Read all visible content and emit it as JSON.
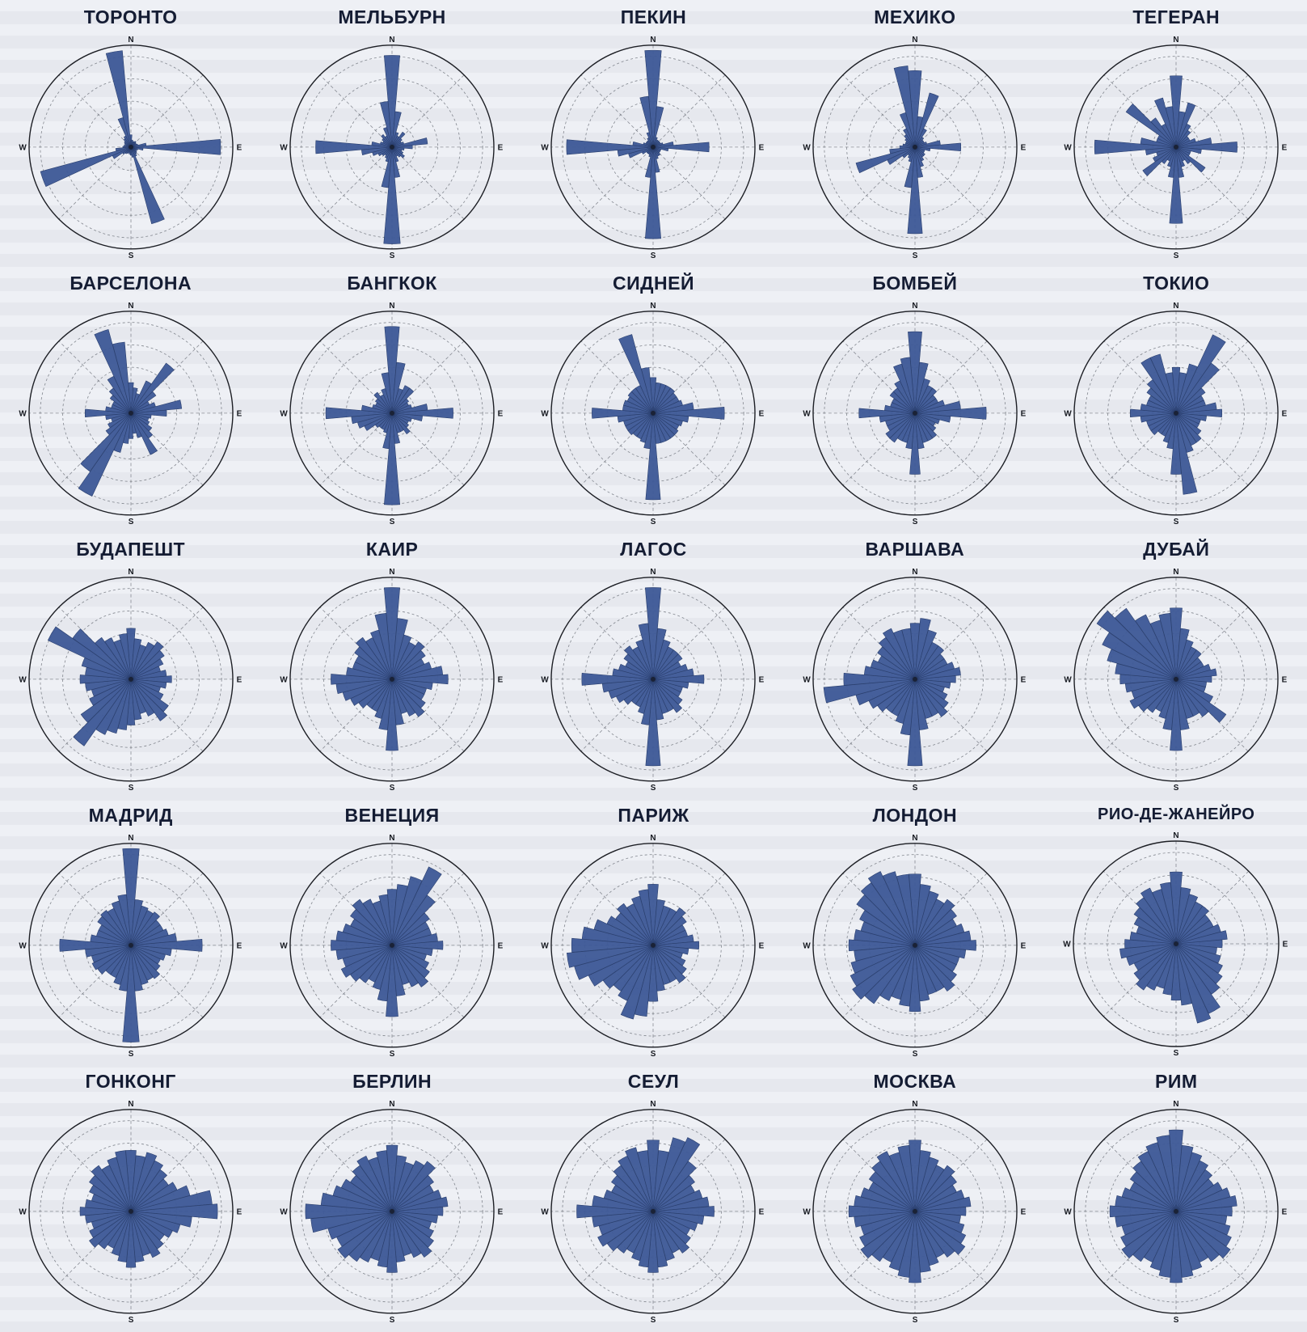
{
  "page": {
    "kind": "wind-rose atlas poster, 5x5 grid of city wind roses",
    "background": "#e9ebf1"
  },
  "colors": {
    "petal": "#3e5a97",
    "petal_stroke": "#2a3f6e",
    "grid_line": "#70747d",
    "outline": "#1c1e24",
    "title": "#141c33",
    "compass": "#15181f"
  },
  "chart_data": {
    "type": "bar",
    "polar": true,
    "subtype": "windrose-grid",
    "layout": {
      "rows": 5,
      "cols": 5
    },
    "sectors": 36,
    "sector_width_deg": 10,
    "start_direction": "N",
    "order": "clockwise",
    "grid_rings": 4,
    "radial_guides_deg": [
      0,
      45,
      90,
      135
    ],
    "direction_labels": [
      "N",
      "E",
      "S",
      "W"
    ],
    "value_scale": "relative frequency, normalized 0-1 (ring scale numerals illegible in source)",
    "charts": [
      {
        "title": "ТОРОНТО",
        "values": [
          0.12,
          0.07,
          0.06,
          0.06,
          0.07,
          0.06,
          0.06,
          0.07,
          0.15,
          0.88,
          0.12,
          0.07,
          0.06,
          0.07,
          0.08,
          0.1,
          0.78,
          0.1,
          0.08,
          0.07,
          0.06,
          0.07,
          0.08,
          0.1,
          0.2,
          0.92,
          0.15,
          0.08,
          0.07,
          0.06,
          0.07,
          0.08,
          0.1,
          0.12,
          0.3,
          0.95
        ]
      },
      {
        "title": "МЕЛЬБУРН",
        "values": [
          0.9,
          0.35,
          0.15,
          0.12,
          0.18,
          0.12,
          0.1,
          0.12,
          0.35,
          0.2,
          0.12,
          0.1,
          0.12,
          0.15,
          0.12,
          0.1,
          0.15,
          0.3,
          0.95,
          0.4,
          0.15,
          0.12,
          0.1,
          0.12,
          0.15,
          0.2,
          0.3,
          0.75,
          0.2,
          0.12,
          0.1,
          0.12,
          0.15,
          0.12,
          0.2,
          0.45
        ]
      },
      {
        "title": "ПЕКИН",
        "values": [
          0.95,
          0.4,
          0.1,
          0.08,
          0.08,
          0.08,
          0.08,
          0.1,
          0.2,
          0.55,
          0.15,
          0.08,
          0.08,
          0.08,
          0.1,
          0.1,
          0.12,
          0.25,
          0.9,
          0.3,
          0.1,
          0.08,
          0.08,
          0.08,
          0.12,
          0.25,
          0.35,
          0.85,
          0.2,
          0.1,
          0.08,
          0.08,
          0.08,
          0.1,
          0.15,
          0.5
        ]
      },
      {
        "title": "МЕХИКО",
        "values": [
          0.75,
          0.3,
          0.55,
          0.2,
          0.12,
          0.1,
          0.1,
          0.12,
          0.25,
          0.45,
          0.15,
          0.1,
          0.1,
          0.12,
          0.12,
          0.15,
          0.2,
          0.3,
          0.85,
          0.4,
          0.15,
          0.12,
          0.1,
          0.15,
          0.3,
          0.6,
          0.25,
          0.15,
          0.12,
          0.1,
          0.1,
          0.12,
          0.15,
          0.2,
          0.35,
          0.8
        ]
      },
      {
        "title": "ТЕГЕРАН",
        "values": [
          0.7,
          0.35,
          0.45,
          0.25,
          0.2,
          0.15,
          0.15,
          0.2,
          0.35,
          0.6,
          0.25,
          0.15,
          0.15,
          0.35,
          0.2,
          0.15,
          0.2,
          0.3,
          0.75,
          0.3,
          0.2,
          0.15,
          0.2,
          0.4,
          0.25,
          0.2,
          0.3,
          0.8,
          0.35,
          0.2,
          0.2,
          0.6,
          0.35,
          0.25,
          0.5,
          0.4
        ]
      },
      {
        "title": "БАРСЕЛОНА",
        "values": [
          0.3,
          0.25,
          0.2,
          0.35,
          0.6,
          0.3,
          0.2,
          0.25,
          0.5,
          0.35,
          0.2,
          0.18,
          0.2,
          0.25,
          0.3,
          0.45,
          0.25,
          0.2,
          0.25,
          0.3,
          0.4,
          0.9,
          0.7,
          0.3,
          0.25,
          0.2,
          0.25,
          0.45,
          0.25,
          0.2,
          0.2,
          0.25,
          0.3,
          0.4,
          0.85,
          0.7
        ]
      },
      {
        "title": "БАНГКОК",
        "values": [
          0.85,
          0.5,
          0.25,
          0.3,
          0.3,
          0.2,
          0.18,
          0.2,
          0.35,
          0.6,
          0.3,
          0.2,
          0.18,
          0.2,
          0.25,
          0.2,
          0.2,
          0.3,
          0.9,
          0.35,
          0.2,
          0.18,
          0.18,
          0.2,
          0.3,
          0.35,
          0.4,
          0.65,
          0.3,
          0.2,
          0.18,
          0.2,
          0.25,
          0.2,
          0.25,
          0.4
        ]
      },
      {
        "title": "СИДНЕЙ",
        "values": [
          0.35,
          0.3,
          0.3,
          0.3,
          0.3,
          0.28,
          0.28,
          0.3,
          0.4,
          0.7,
          0.35,
          0.3,
          0.28,
          0.3,
          0.3,
          0.3,
          0.3,
          0.3,
          0.85,
          0.35,
          0.3,
          0.28,
          0.28,
          0.3,
          0.3,
          0.3,
          0.35,
          0.6,
          0.3,
          0.3,
          0.28,
          0.3,
          0.3,
          0.3,
          0.8,
          0.45
        ]
      },
      {
        "title": "БОМБЕЙ",
        "values": [
          0.8,
          0.5,
          0.35,
          0.3,
          0.3,
          0.25,
          0.25,
          0.3,
          0.45,
          0.7,
          0.35,
          0.25,
          0.22,
          0.25,
          0.3,
          0.3,
          0.3,
          0.35,
          0.6,
          0.35,
          0.3,
          0.3,
          0.35,
          0.35,
          0.3,
          0.3,
          0.35,
          0.55,
          0.3,
          0.25,
          0.25,
          0.3,
          0.3,
          0.35,
          0.5,
          0.55
        ]
      },
      {
        "title": "ТОКИО",
        "values": [
          0.45,
          0.4,
          0.5,
          0.85,
          0.6,
          0.35,
          0.3,
          0.3,
          0.4,
          0.45,
          0.3,
          0.25,
          0.25,
          0.3,
          0.35,
          0.35,
          0.4,
          0.8,
          0.6,
          0.35,
          0.3,
          0.25,
          0.25,
          0.3,
          0.3,
          0.3,
          0.35,
          0.45,
          0.35,
          0.3,
          0.3,
          0.35,
          0.4,
          0.6,
          0.6,
          0.4
        ]
      },
      {
        "title": "БУДАПЕШТ",
        "values": [
          0.5,
          0.4,
          0.35,
          0.4,
          0.45,
          0.4,
          0.35,
          0.3,
          0.35,
          0.4,
          0.35,
          0.3,
          0.35,
          0.45,
          0.5,
          0.4,
          0.35,
          0.4,
          0.45,
          0.5,
          0.55,
          0.6,
          0.8,
          0.6,
          0.45,
          0.4,
          0.45,
          0.5,
          0.45,
          0.5,
          0.9,
          0.7,
          0.5,
          0.45,
          0.4,
          0.45
        ]
      },
      {
        "title": "КАИР",
        "values": [
          0.9,
          0.6,
          0.45,
          0.4,
          0.45,
          0.4,
          0.35,
          0.4,
          0.5,
          0.55,
          0.4,
          0.35,
          0.35,
          0.4,
          0.45,
          0.4,
          0.35,
          0.45,
          0.7,
          0.5,
          0.4,
          0.35,
          0.35,
          0.4,
          0.45,
          0.5,
          0.55,
          0.6,
          0.45,
          0.4,
          0.4,
          0.45,
          0.5,
          0.45,
          0.5,
          0.65
        ]
      },
      {
        "title": "ЛАГОС",
        "values": [
          0.9,
          0.5,
          0.4,
          0.35,
          0.35,
          0.35,
          0.3,
          0.35,
          0.4,
          0.5,
          0.35,
          0.3,
          0.3,
          0.35,
          0.4,
          0.35,
          0.35,
          0.4,
          0.85,
          0.45,
          0.35,
          0.3,
          0.3,
          0.35,
          0.4,
          0.45,
          0.5,
          0.7,
          0.4,
          0.35,
          0.3,
          0.35,
          0.4,
          0.35,
          0.4,
          0.55
        ]
      },
      {
        "title": "ВАРШАВА",
        "values": [
          0.55,
          0.6,
          0.5,
          0.4,
          0.4,
          0.35,
          0.35,
          0.4,
          0.45,
          0.4,
          0.35,
          0.3,
          0.35,
          0.4,
          0.45,
          0.4,
          0.4,
          0.5,
          0.85,
          0.55,
          0.45,
          0.4,
          0.4,
          0.45,
          0.5,
          0.6,
          0.9,
          0.7,
          0.5,
          0.45,
          0.4,
          0.45,
          0.5,
          0.55,
          0.5,
          0.5
        ]
      },
      {
        "title": "ДУБАЙ",
        "values": [
          0.7,
          0.5,
          0.4,
          0.35,
          0.35,
          0.3,
          0.3,
          0.35,
          0.4,
          0.35,
          0.3,
          0.3,
          0.4,
          0.6,
          0.45,
          0.4,
          0.4,
          0.5,
          0.7,
          0.5,
          0.4,
          0.35,
          0.4,
          0.45,
          0.5,
          0.45,
          0.5,
          0.55,
          0.6,
          0.7,
          0.8,
          0.95,
          0.85,
          0.7,
          0.6,
          0.65
        ]
      },
      {
        "title": "МАДРИД",
        "values": [
          0.95,
          0.45,
          0.4,
          0.38,
          0.4,
          0.35,
          0.35,
          0.38,
          0.45,
          0.7,
          0.4,
          0.35,
          0.32,
          0.35,
          0.4,
          0.38,
          0.4,
          0.45,
          0.95,
          0.45,
          0.4,
          0.35,
          0.35,
          0.4,
          0.42,
          0.4,
          0.45,
          0.7,
          0.4,
          0.35,
          0.35,
          0.4,
          0.42,
          0.4,
          0.45,
          0.5
        ]
      },
      {
        "title": "ВЕНЕЦИЯ",
        "values": [
          0.55,
          0.6,
          0.7,
          0.85,
          0.6,
          0.45,
          0.4,
          0.4,
          0.45,
          0.5,
          0.4,
          0.35,
          0.4,
          0.45,
          0.5,
          0.45,
          0.4,
          0.5,
          0.7,
          0.55,
          0.45,
          0.4,
          0.45,
          0.5,
          0.55,
          0.5,
          0.55,
          0.6,
          0.55,
          0.5,
          0.45,
          0.5,
          0.55,
          0.5,
          0.45,
          0.5
        ]
      },
      {
        "title": "ПАРИЖ",
        "values": [
          0.6,
          0.45,
          0.4,
          0.4,
          0.45,
          0.4,
          0.35,
          0.35,
          0.4,
          0.45,
          0.35,
          0.3,
          0.35,
          0.4,
          0.45,
          0.4,
          0.4,
          0.45,
          0.55,
          0.7,
          0.75,
          0.6,
          0.55,
          0.6,
          0.7,
          0.8,
          0.85,
          0.8,
          0.7,
          0.6,
          0.5,
          0.45,
          0.5,
          0.45,
          0.5,
          0.55
        ]
      },
      {
        "title": "ЛОНДОН",
        "values": [
          0.7,
          0.6,
          0.55,
          0.5,
          0.55,
          0.5,
          0.45,
          0.5,
          0.55,
          0.6,
          0.5,
          0.45,
          0.45,
          0.5,
          0.55,
          0.5,
          0.5,
          0.55,
          0.65,
          0.6,
          0.55,
          0.6,
          0.7,
          0.75,
          0.7,
          0.65,
          0.6,
          0.65,
          0.6,
          0.55,
          0.6,
          0.7,
          0.75,
          0.8,
          0.75,
          0.7
        ]
      },
      {
        "title": "РИО-ДЕ-ЖАНЕЙРО",
        "values": [
          0.7,
          0.55,
          0.5,
          0.45,
          0.45,
          0.4,
          0.4,
          0.45,
          0.5,
          0.45,
          0.4,
          0.45,
          0.5,
          0.55,
          0.6,
          0.75,
          0.8,
          0.6,
          0.55,
          0.5,
          0.45,
          0.5,
          0.55,
          0.5,
          0.45,
          0.5,
          0.55,
          0.5,
          0.45,
          0.4,
          0.45,
          0.5,
          0.55,
          0.6,
          0.55,
          0.6
        ]
      },
      {
        "title": "ГОНКОНГ",
        "values": [
          0.6,
          0.55,
          0.6,
          0.55,
          0.5,
          0.45,
          0.5,
          0.6,
          0.8,
          0.85,
          0.6,
          0.5,
          0.45,
          0.4,
          0.45,
          0.5,
          0.45,
          0.5,
          0.55,
          0.5,
          0.45,
          0.4,
          0.45,
          0.5,
          0.45,
          0.4,
          0.45,
          0.5,
          0.45,
          0.4,
          0.45,
          0.5,
          0.55,
          0.5,
          0.55,
          0.6
        ]
      },
      {
        "title": "БЕРЛИН",
        "values": [
          0.65,
          0.55,
          0.5,
          0.55,
          0.6,
          0.5,
          0.45,
          0.5,
          0.55,
          0.5,
          0.45,
          0.4,
          0.45,
          0.5,
          0.55,
          0.5,
          0.45,
          0.5,
          0.6,
          0.55,
          0.5,
          0.55,
          0.6,
          0.65,
          0.6,
          0.65,
          0.8,
          0.85,
          0.7,
          0.6,
          0.55,
          0.5,
          0.55,
          0.6,
          0.55,
          0.6
        ]
      },
      {
        "title": "СЕУЛ",
        "values": [
          0.7,
          0.6,
          0.75,
          0.8,
          0.6,
          0.5,
          0.45,
          0.5,
          0.55,
          0.6,
          0.5,
          0.45,
          0.4,
          0.45,
          0.5,
          0.45,
          0.5,
          0.55,
          0.6,
          0.55,
          0.5,
          0.45,
          0.5,
          0.55,
          0.6,
          0.55,
          0.6,
          0.75,
          0.6,
          0.5,
          0.45,
          0.5,
          0.55,
          0.6,
          0.65,
          0.6
        ]
      },
      {
        "title": "МОСКВА",
        "values": [
          0.7,
          0.6,
          0.55,
          0.5,
          0.55,
          0.5,
          0.45,
          0.5,
          0.55,
          0.5,
          0.45,
          0.5,
          0.55,
          0.6,
          0.55,
          0.5,
          0.55,
          0.6,
          0.7,
          0.65,
          0.6,
          0.55,
          0.6,
          0.65,
          0.6,
          0.55,
          0.6,
          0.65,
          0.6,
          0.55,
          0.5,
          0.55,
          0.6,
          0.65,
          0.6,
          0.65
        ]
      },
      {
        "title": "РИМ",
        "values": [
          0.8,
          0.65,
          0.6,
          0.55,
          0.5,
          0.45,
          0.5,
          0.55,
          0.6,
          0.55,
          0.5,
          0.55,
          0.6,
          0.65,
          0.6,
          0.55,
          0.6,
          0.65,
          0.7,
          0.65,
          0.6,
          0.55,
          0.6,
          0.65,
          0.6,
          0.55,
          0.6,
          0.65,
          0.6,
          0.55,
          0.5,
          0.55,
          0.6,
          0.65,
          0.7,
          0.75
        ]
      }
    ]
  }
}
